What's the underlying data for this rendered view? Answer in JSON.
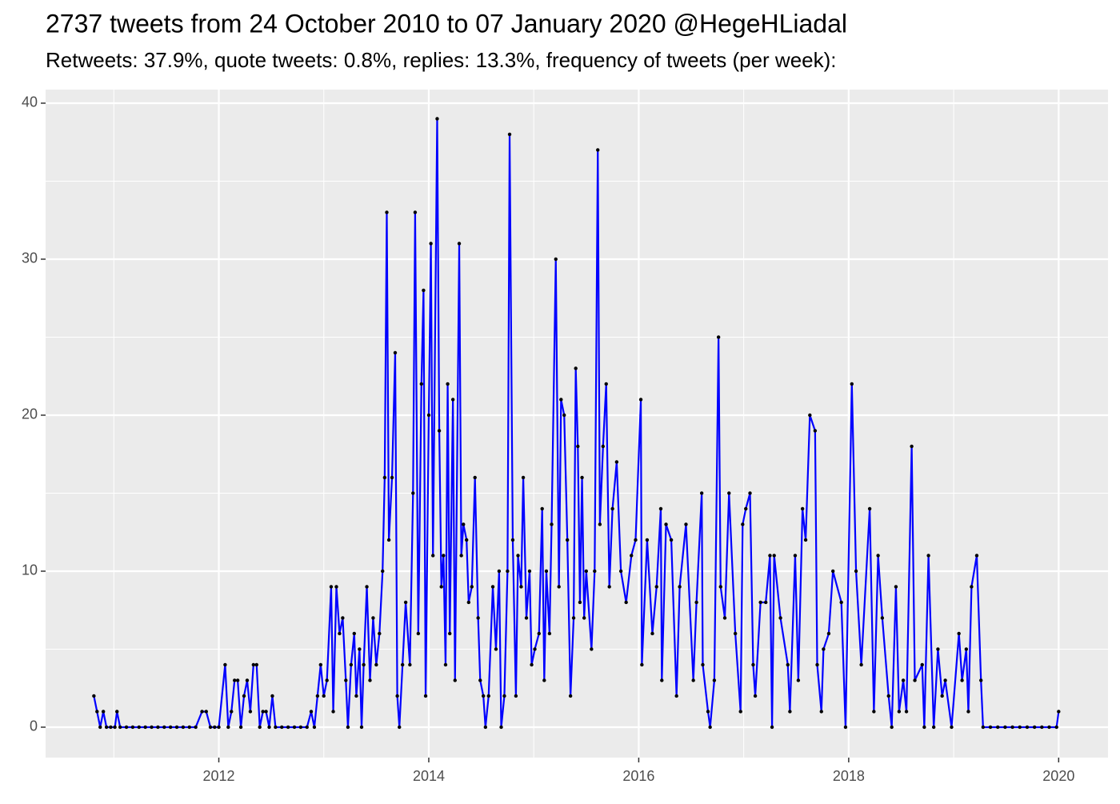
{
  "chart_data": {
    "type": "line",
    "title": "2737 tweets from 24 October 2010 to 07 January 2020 @HegeHLiadal",
    "subtitle": "Retweets: 37.9%, quote tweets: 0.8%, replies: 13.3%, frequency of tweets (per week):",
    "x": [
      2010.81,
      2010.84,
      2010.87,
      2010.9,
      2010.93,
      2010.97,
      2011.01,
      2011.03,
      2011.06,
      2011.12,
      2011.18,
      2011.24,
      2011.3,
      2011.36,
      2011.42,
      2011.48,
      2011.54,
      2011.6,
      2011.66,
      2011.72,
      2011.78,
      2011.84,
      2011.88,
      2011.92,
      2011.96,
      2012.0,
      2012.06,
      2012.09,
      2012.12,
      2012.15,
      2012.18,
      2012.21,
      2012.24,
      2012.27,
      2012.3,
      2012.33,
      2012.36,
      2012.39,
      2012.42,
      2012.45,
      2012.48,
      2012.51,
      2012.54,
      2012.6,
      2012.66,
      2012.72,
      2012.78,
      2012.84,
      2012.88,
      2012.91,
      2012.94,
      2012.97,
      2013.0,
      2013.03,
      2013.07,
      2013.09,
      2013.12,
      2013.15,
      2013.18,
      2013.21,
      2013.23,
      2013.26,
      2013.29,
      2013.31,
      2013.34,
      2013.36,
      2013.38,
      2013.41,
      2013.44,
      2013.47,
      2013.5,
      2013.53,
      2013.56,
      2013.58,
      2013.6,
      2013.62,
      2013.65,
      2013.68,
      2013.7,
      2013.72,
      2013.75,
      2013.78,
      2013.82,
      2013.85,
      2013.87,
      2013.9,
      2013.93,
      2013.95,
      2013.97,
      2014.0,
      2014.02,
      2014.04,
      2014.08,
      2014.1,
      2014.12,
      2014.14,
      2014.16,
      2014.18,
      2014.2,
      2014.23,
      2014.25,
      2014.29,
      2014.31,
      2014.33,
      2014.36,
      2014.38,
      2014.41,
      2014.44,
      2014.47,
      2014.49,
      2014.52,
      2014.54,
      2014.57,
      2014.61,
      2014.64,
      2014.67,
      2014.69,
      2014.72,
      2014.75,
      2014.77,
      2014.8,
      2014.83,
      2014.85,
      2014.88,
      2014.9,
      2014.93,
      2014.96,
      2014.98,
      2015.01,
      2015.05,
      2015.08,
      2015.1,
      2015.12,
      2015.15,
      2015.17,
      2015.21,
      2015.24,
      2015.26,
      2015.29,
      2015.32,
      2015.35,
      2015.38,
      2015.4,
      2015.42,
      2015.44,
      2015.46,
      2015.48,
      2015.5,
      2015.55,
      2015.58,
      2015.61,
      2015.63,
      2015.66,
      2015.69,
      2015.72,
      2015.75,
      2015.79,
      2015.83,
      2015.88,
      2015.93,
      2015.97,
      2016.02,
      2016.03,
      2016.08,
      2016.13,
      2016.17,
      2016.21,
      2016.22,
      2016.26,
      2016.31,
      2016.36,
      2016.39,
      2016.45,
      2016.52,
      2016.55,
      2016.6,
      2016.61,
      2016.66,
      2016.68,
      2016.72,
      2016.76,
      2016.78,
      2016.82,
      2016.86,
      2016.92,
      2016.97,
      2016.99,
      2017.02,
      2017.06,
      2017.09,
      2017.11,
      2017.16,
      2017.21,
      2017.25,
      2017.27,
      2017.29,
      2017.35,
      2017.42,
      2017.44,
      2017.49,
      2017.52,
      2017.56,
      2017.59,
      2017.63,
      2017.68,
      2017.7,
      2017.74,
      2017.76,
      2017.81,
      2017.85,
      2017.93,
      2017.97,
      2018.03,
      2018.07,
      2018.12,
      2018.2,
      2018.24,
      2018.28,
      2018.32,
      2018.38,
      2018.41,
      2018.45,
      2018.48,
      2018.52,
      2018.55,
      2018.6,
      2018.63,
      2018.7,
      2018.72,
      2018.76,
      2018.81,
      2018.85,
      2018.89,
      2018.92,
      2018.98,
      2019.05,
      2019.08,
      2019.12,
      2019.14,
      2019.17,
      2019.22,
      2019.26,
      2019.28,
      2019.35,
      2019.42,
      2019.49,
      2019.56,
      2019.63,
      2019.7,
      2019.77,
      2019.84,
      2019.91,
      2019.98,
      2020.0
    ],
    "series": [
      {
        "name": "tweets",
        "color": "#0000ff",
        "values": [
          2,
          1,
          0,
          1,
          0,
          0,
          0,
          1,
          0,
          0,
          0,
          0,
          0,
          0,
          0,
          0,
          0,
          0,
          0,
          0,
          0,
          1,
          1,
          0,
          0,
          0,
          4,
          0,
          1,
          3,
          3,
          0,
          2,
          3,
          1,
          4,
          4,
          0,
          1,
          1,
          0,
          2,
          0,
          0,
          0,
          0,
          0,
          0,
          1,
          0,
          2,
          4,
          2,
          3,
          9,
          1,
          9,
          6,
          7,
          3,
          0,
          4,
          6,
          2,
          5,
          0,
          4,
          9,
          3,
          7,
          4,
          6,
          10,
          16,
          33,
          12,
          16,
          24,
          2,
          0,
          4,
          8,
          4,
          15,
          33,
          6,
          22,
          28,
          2,
          20,
          31,
          11,
          39,
          19,
          9,
          11,
          4,
          22,
          6,
          21,
          3,
          31,
          11,
          13,
          12,
          8,
          9,
          16,
          7,
          3,
          2,
          0,
          2,
          9,
          5,
          10,
          0,
          2,
          10,
          38,
          12,
          2,
          11,
          9,
          16,
          7,
          10,
          4,
          5,
          6,
          14,
          3,
          10,
          6,
          13,
          30,
          9,
          21,
          20,
          12,
          2,
          7,
          23,
          18,
          8,
          16,
          7,
          10,
          5,
          10,
          37,
          13,
          18,
          22,
          9,
          14,
          17,
          10,
          8,
          11,
          12,
          21,
          4,
          12,
          6,
          9,
          14,
          3,
          13,
          12,
          2,
          9,
          13,
          3,
          8,
          15,
          4,
          1,
          0,
          3,
          25,
          9,
          7,
          15,
          6,
          1,
          13,
          14,
          15,
          4,
          2,
          8,
          8,
          11,
          0,
          11,
          7,
          4,
          1,
          11,
          3,
          14,
          12,
          20,
          19,
          4,
          1,
          5,
          6,
          10,
          8,
          0,
          22,
          10,
          4,
          14,
          1,
          11,
          7,
          2,
          0,
          9,
          1,
          3,
          1,
          18,
          3,
          4,
          0,
          11,
          0,
          5,
          2,
          3,
          0,
          6,
          3,
          5,
          1,
          9,
          11,
          3,
          0,
          0,
          0,
          0,
          0,
          0,
          0,
          0,
          0,
          0,
          0,
          1
        ]
      }
    ],
    "xlim": [
      2010.35,
      2020.47
    ],
    "xticks": [
      2012,
      2014,
      2016,
      2018,
      2020
    ],
    "ylim": [
      -1.95,
      40.87
    ],
    "yticks": [
      0,
      10,
      20,
      30,
      40
    ],
    "grid": true
  }
}
